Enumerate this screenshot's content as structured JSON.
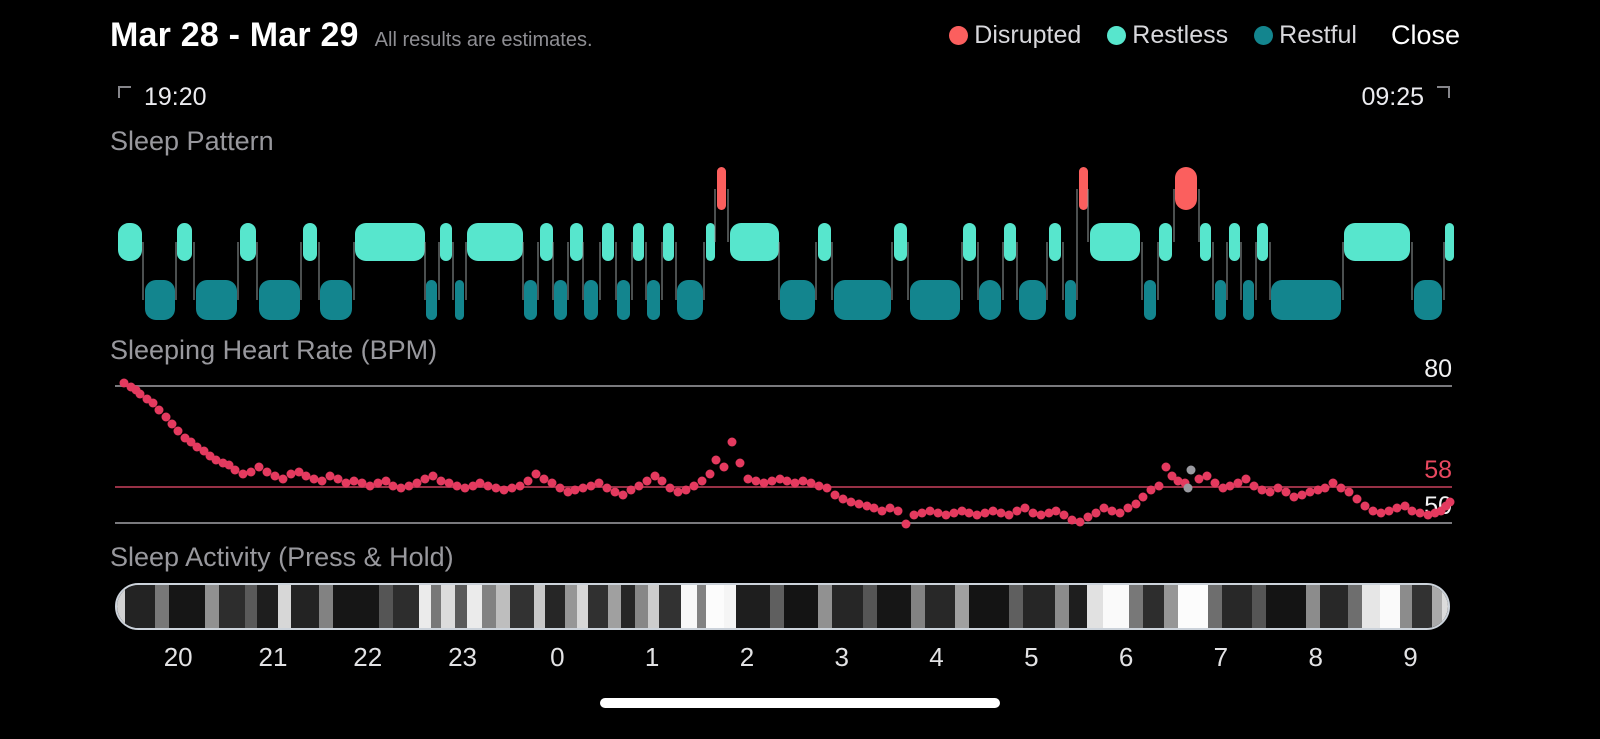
{
  "header": {
    "title": "Mar 28 - Mar 29",
    "subtitle": "All results are estimates.",
    "close_label": "Close",
    "legend": [
      {
        "label": "Disrupted",
        "color": "#fb5f5e"
      },
      {
        "label": "Restless",
        "color": "#57e6cd"
      },
      {
        "label": "Restful",
        "color": "#13858e"
      }
    ]
  },
  "time_range": {
    "start": "19:20",
    "end": "09:25"
  },
  "sections": {
    "sleep_pattern": "Sleep Pattern",
    "heart_rate": "Sleeping Heart Rate (BPM)",
    "activity": "Sleep Activity (Press & Hold)"
  },
  "chart_data": [
    {
      "type": "timeline",
      "title": "Sleep Pattern",
      "time_start": "19:20",
      "time_end": "09:25",
      "total_minutes": 845,
      "states": {
        "disrupted": "#fb5f5e",
        "restless": "#57e6cd",
        "restful": "#13858e"
      },
      "segments": [
        [
          2,
          17,
          "restless"
        ],
        [
          19,
          38,
          "restful"
        ],
        [
          39,
          49,
          "restless"
        ],
        [
          51,
          77,
          "restful"
        ],
        [
          79,
          89,
          "restless"
        ],
        [
          91,
          117,
          "restful"
        ],
        [
          119,
          128,
          "restless"
        ],
        [
          130,
          150,
          "restful"
        ],
        [
          152,
          196,
          "restless"
        ],
        [
          197,
          204,
          "restful"
        ],
        [
          206,
          213,
          "restless"
        ],
        [
          215,
          221,
          "restful"
        ],
        [
          223,
          258,
          "restless"
        ],
        [
          259,
          267,
          "restful"
        ],
        [
          269,
          277,
          "restless"
        ],
        [
          278,
          286,
          "restful"
        ],
        [
          288,
          296,
          "restless"
        ],
        [
          297,
          306,
          "restful"
        ],
        [
          308,
          316,
          "restless"
        ],
        [
          318,
          326,
          "restful"
        ],
        [
          328,
          335,
          "restless"
        ],
        [
          337,
          345,
          "restful"
        ],
        [
          347,
          354,
          "restless"
        ],
        [
          356,
          372,
          "restful"
        ],
        [
          374,
          379,
          "restless"
        ],
        [
          381,
          387,
          "disrupted"
        ],
        [
          389,
          420,
          "restless"
        ],
        [
          421,
          443,
          "restful"
        ],
        [
          445,
          453,
          "restless"
        ],
        [
          455,
          491,
          "restful"
        ],
        [
          493,
          501,
          "restless"
        ],
        [
          503,
          535,
          "restful"
        ],
        [
          537,
          545,
          "restless"
        ],
        [
          547,
          561,
          "restful"
        ],
        [
          563,
          570,
          "restless"
        ],
        [
          572,
          589,
          "restful"
        ],
        [
          591,
          599,
          "restless"
        ],
        [
          601,
          608,
          "restful"
        ],
        [
          610,
          615,
          "disrupted"
        ],
        [
          617,
          649,
          "restless"
        ],
        [
          651,
          659,
          "restful"
        ],
        [
          661,
          669,
          "restless"
        ],
        [
          671,
          685,
          "disrupted"
        ],
        [
          687,
          694,
          "restless"
        ],
        [
          696,
          703,
          "restful"
        ],
        [
          705,
          712,
          "restless"
        ],
        [
          714,
          721,
          "restful"
        ],
        [
          723,
          730,
          "restless"
        ],
        [
          732,
          776,
          "restful"
        ],
        [
          778,
          820,
          "restless"
        ],
        [
          822,
          840,
          "restful"
        ],
        [
          842,
          845,
          "restless"
        ]
      ]
    },
    {
      "type": "scatter",
      "title": "Sleeping Heart Rate (BPM)",
      "total_minutes": 845,
      "ylim": [
        48.7,
        83.3
      ],
      "point_color": "#e43a5f",
      "gray_point_color": "#9a9aa0",
      "ref_lines": [
        {
          "bpm": 80,
          "label": "80",
          "color": "#8e8e93",
          "label_color": "#f2f2f3"
        },
        {
          "bpm": 58,
          "label": "58",
          "color": "#b23a52",
          "label_color": "#e8485f"
        },
        {
          "bpm": 50,
          "label": "50",
          "color": "#8e8e93",
          "label_color": "#f2f2f3"
        }
      ],
      "points": [
        [
          6,
          80.5
        ],
        [
          10,
          79.5
        ],
        [
          13,
          79
        ],
        [
          16,
          78
        ],
        [
          20,
          77
        ],
        [
          24,
          76
        ],
        [
          28,
          74.5
        ],
        [
          32,
          73
        ],
        [
          36,
          71.5
        ],
        [
          40,
          70
        ],
        [
          44,
          68.5
        ],
        [
          48,
          67.5
        ],
        [
          52,
          66.5
        ],
        [
          56,
          65.5
        ],
        [
          60,
          64.5
        ],
        [
          64,
          63.5
        ],
        [
          68,
          63
        ],
        [
          72,
          62.5
        ],
        [
          76,
          61.5
        ],
        [
          81,
          60.5
        ],
        [
          86,
          61
        ],
        [
          91,
          62
        ],
        [
          96,
          61
        ],
        [
          101,
          60
        ],
        [
          106,
          59.5
        ],
        [
          111,
          60.5
        ],
        [
          116,
          61
        ],
        [
          121,
          60
        ],
        [
          126,
          59.5
        ],
        [
          131,
          59
        ],
        [
          136,
          60
        ],
        [
          141,
          59.5
        ],
        [
          146,
          58.5
        ],
        [
          151,
          59
        ],
        [
          156,
          58.5
        ],
        [
          161,
          58
        ],
        [
          166,
          58.5
        ],
        [
          171,
          59
        ],
        [
          176,
          58
        ],
        [
          181,
          57.5
        ],
        [
          186,
          58
        ],
        [
          191,
          58.5
        ],
        [
          196,
          59.5
        ],
        [
          201,
          60
        ],
        [
          206,
          59
        ],
        [
          211,
          58.5
        ],
        [
          216,
          58
        ],
        [
          221,
          57.5
        ],
        [
          226,
          58
        ],
        [
          231,
          58.5
        ],
        [
          236,
          58
        ],
        [
          241,
          57.5
        ],
        [
          246,
          57
        ],
        [
          251,
          57.5
        ],
        [
          256,
          58
        ],
        [
          261,
          59
        ],
        [
          266,
          60.5
        ],
        [
          271,
          59.5
        ],
        [
          276,
          58.5
        ],
        [
          281,
          57.5
        ],
        [
          286,
          56.5
        ],
        [
          291,
          57
        ],
        [
          296,
          57.5
        ],
        [
          301,
          58
        ],
        [
          306,
          58.5
        ],
        [
          311,
          57.5
        ],
        [
          316,
          56.5
        ],
        [
          321,
          56
        ],
        [
          326,
          57
        ],
        [
          331,
          58
        ],
        [
          336,
          59
        ],
        [
          341,
          60
        ],
        [
          346,
          59
        ],
        [
          351,
          57.5
        ],
        [
          356,
          56.5
        ],
        [
          361,
          57
        ],
        [
          366,
          58
        ],
        [
          371,
          59
        ],
        [
          376,
          60.5
        ],
        [
          380,
          63.5
        ],
        [
          385,
          62
        ],
        [
          390,
          67.5
        ],
        [
          395,
          63
        ],
        [
          400,
          59.5
        ],
        [
          405,
          59
        ],
        [
          410,
          58.5
        ],
        [
          415,
          59
        ],
        [
          420,
          59.5
        ],
        [
          425,
          59
        ],
        [
          430,
          58.5
        ],
        [
          435,
          59
        ],
        [
          440,
          58.5
        ],
        [
          445,
          58
        ],
        [
          450,
          57.5
        ],
        [
          455,
          56
        ],
        [
          460,
          55
        ],
        [
          465,
          54.5
        ],
        [
          470,
          54
        ],
        [
          475,
          53.5
        ],
        [
          480,
          53
        ],
        [
          485,
          52.5
        ],
        [
          490,
          53
        ],
        [
          495,
          52.5
        ],
        [
          500,
          49.5
        ],
        [
          505,
          51.5
        ],
        [
          510,
          52
        ],
        [
          515,
          52.5
        ],
        [
          520,
          52
        ],
        [
          525,
          51.5
        ],
        [
          530,
          52
        ],
        [
          535,
          52.5
        ],
        [
          540,
          52
        ],
        [
          545,
          51.5
        ],
        [
          550,
          52
        ],
        [
          555,
          52.5
        ],
        [
          560,
          52
        ],
        [
          565,
          51.5
        ],
        [
          570,
          52.5
        ],
        [
          575,
          53
        ],
        [
          580,
          52
        ],
        [
          585,
          51.5
        ],
        [
          590,
          52
        ],
        [
          595,
          52.5
        ],
        [
          600,
          51.5
        ],
        [
          605,
          50.5
        ],
        [
          610,
          50
        ],
        [
          615,
          51
        ],
        [
          620,
          52
        ],
        [
          625,
          53
        ],
        [
          630,
          52.5
        ],
        [
          635,
          52
        ],
        [
          640,
          53
        ],
        [
          645,
          54
        ],
        [
          650,
          55.5
        ],
        [
          655,
          57
        ],
        [
          660,
          58
        ],
        [
          664,
          62
        ],
        [
          668,
          60
        ],
        [
          672,
          59
        ],
        [
          676,
          58.5
        ],
        [
          685,
          59.5
        ],
        [
          690,
          60
        ],
        [
          695,
          58.5
        ],
        [
          700,
          57.5
        ],
        [
          705,
          58
        ],
        [
          710,
          58.5
        ],
        [
          715,
          59.5
        ],
        [
          720,
          58
        ],
        [
          725,
          57
        ],
        [
          730,
          56.5
        ],
        [
          735,
          57.5
        ],
        [
          740,
          56.5
        ],
        [
          745,
          55.5
        ],
        [
          750,
          56
        ],
        [
          755,
          56.5
        ],
        [
          760,
          57
        ],
        [
          765,
          57.5
        ],
        [
          770,
          58.5
        ],
        [
          775,
          57.5
        ],
        [
          780,
          56.5
        ],
        [
          785,
          55
        ],
        [
          790,
          53.5
        ],
        [
          795,
          52.5
        ],
        [
          800,
          52
        ],
        [
          805,
          52.5
        ],
        [
          810,
          53
        ],
        [
          815,
          53.5
        ],
        [
          820,
          52.5
        ],
        [
          825,
          52
        ],
        [
          830,
          51.5
        ],
        [
          834,
          52
        ],
        [
          838,
          52.5
        ],
        [
          841,
          53.5
        ],
        [
          844,
          54.5
        ]
      ],
      "gray_points": [
        [
          680,
          61.5
        ],
        [
          678,
          57.5
        ]
      ]
    },
    {
      "type": "activity_strip",
      "title": "Sleep Activity (Press & Hold)",
      "bands": [
        [
          8,
          210
        ],
        [
          30,
          35
        ],
        [
          14,
          120
        ],
        [
          36,
          22
        ],
        [
          14,
          145
        ],
        [
          26,
          45
        ],
        [
          12,
          90
        ],
        [
          22,
          30
        ],
        [
          13,
          215
        ],
        [
          28,
          35
        ],
        [
          14,
          130
        ],
        [
          46,
          22
        ],
        [
          14,
          85
        ],
        [
          26,
          45
        ],
        [
          12,
          235
        ],
        [
          10,
          120
        ],
        [
          14,
          220
        ],
        [
          12,
          90
        ],
        [
          15,
          235
        ],
        [
          14,
          130
        ],
        [
          14,
          190
        ],
        [
          24,
          50
        ],
        [
          11,
          200
        ],
        [
          20,
          38
        ],
        [
          13,
          150
        ],
        [
          11,
          215
        ],
        [
          20,
          48
        ],
        [
          13,
          160
        ],
        [
          14,
          38
        ],
        [
          13,
          135
        ],
        [
          11,
          205
        ],
        [
          22,
          50
        ],
        [
          16,
          248
        ],
        [
          9,
          130
        ],
        [
          18,
          252
        ],
        [
          12,
          245
        ],
        [
          34,
          30
        ],
        [
          14,
          95
        ],
        [
          34,
          20
        ],
        [
          14,
          145
        ],
        [
          32,
          38
        ],
        [
          14,
          85
        ],
        [
          34,
          22
        ],
        [
          14,
          130
        ],
        [
          30,
          40
        ],
        [
          14,
          160
        ],
        [
          40,
          20
        ],
        [
          14,
          95
        ],
        [
          32,
          38
        ],
        [
          14,
          140
        ],
        [
          18,
          30
        ],
        [
          16,
          225
        ],
        [
          26,
          250
        ],
        [
          14,
          120
        ],
        [
          22,
          45
        ],
        [
          14,
          150
        ],
        [
          30,
          252
        ],
        [
          14,
          110
        ],
        [
          30,
          40
        ],
        [
          14,
          85
        ],
        [
          40,
          20
        ],
        [
          14,
          140
        ],
        [
          28,
          40
        ],
        [
          14,
          110
        ],
        [
          18,
          230
        ],
        [
          20,
          250
        ],
        [
          12,
          140
        ],
        [
          20,
          50
        ],
        [
          10,
          170
        ],
        [
          6,
          220
        ]
      ]
    }
  ],
  "hours": {
    "labels": [
      "20",
      "21",
      "22",
      "23",
      "0",
      "1",
      "2",
      "3",
      "4",
      "5",
      "6",
      "7",
      "8",
      "9"
    ],
    "start_offset_min": 40,
    "interval_min": 60,
    "total_minutes": 845
  }
}
